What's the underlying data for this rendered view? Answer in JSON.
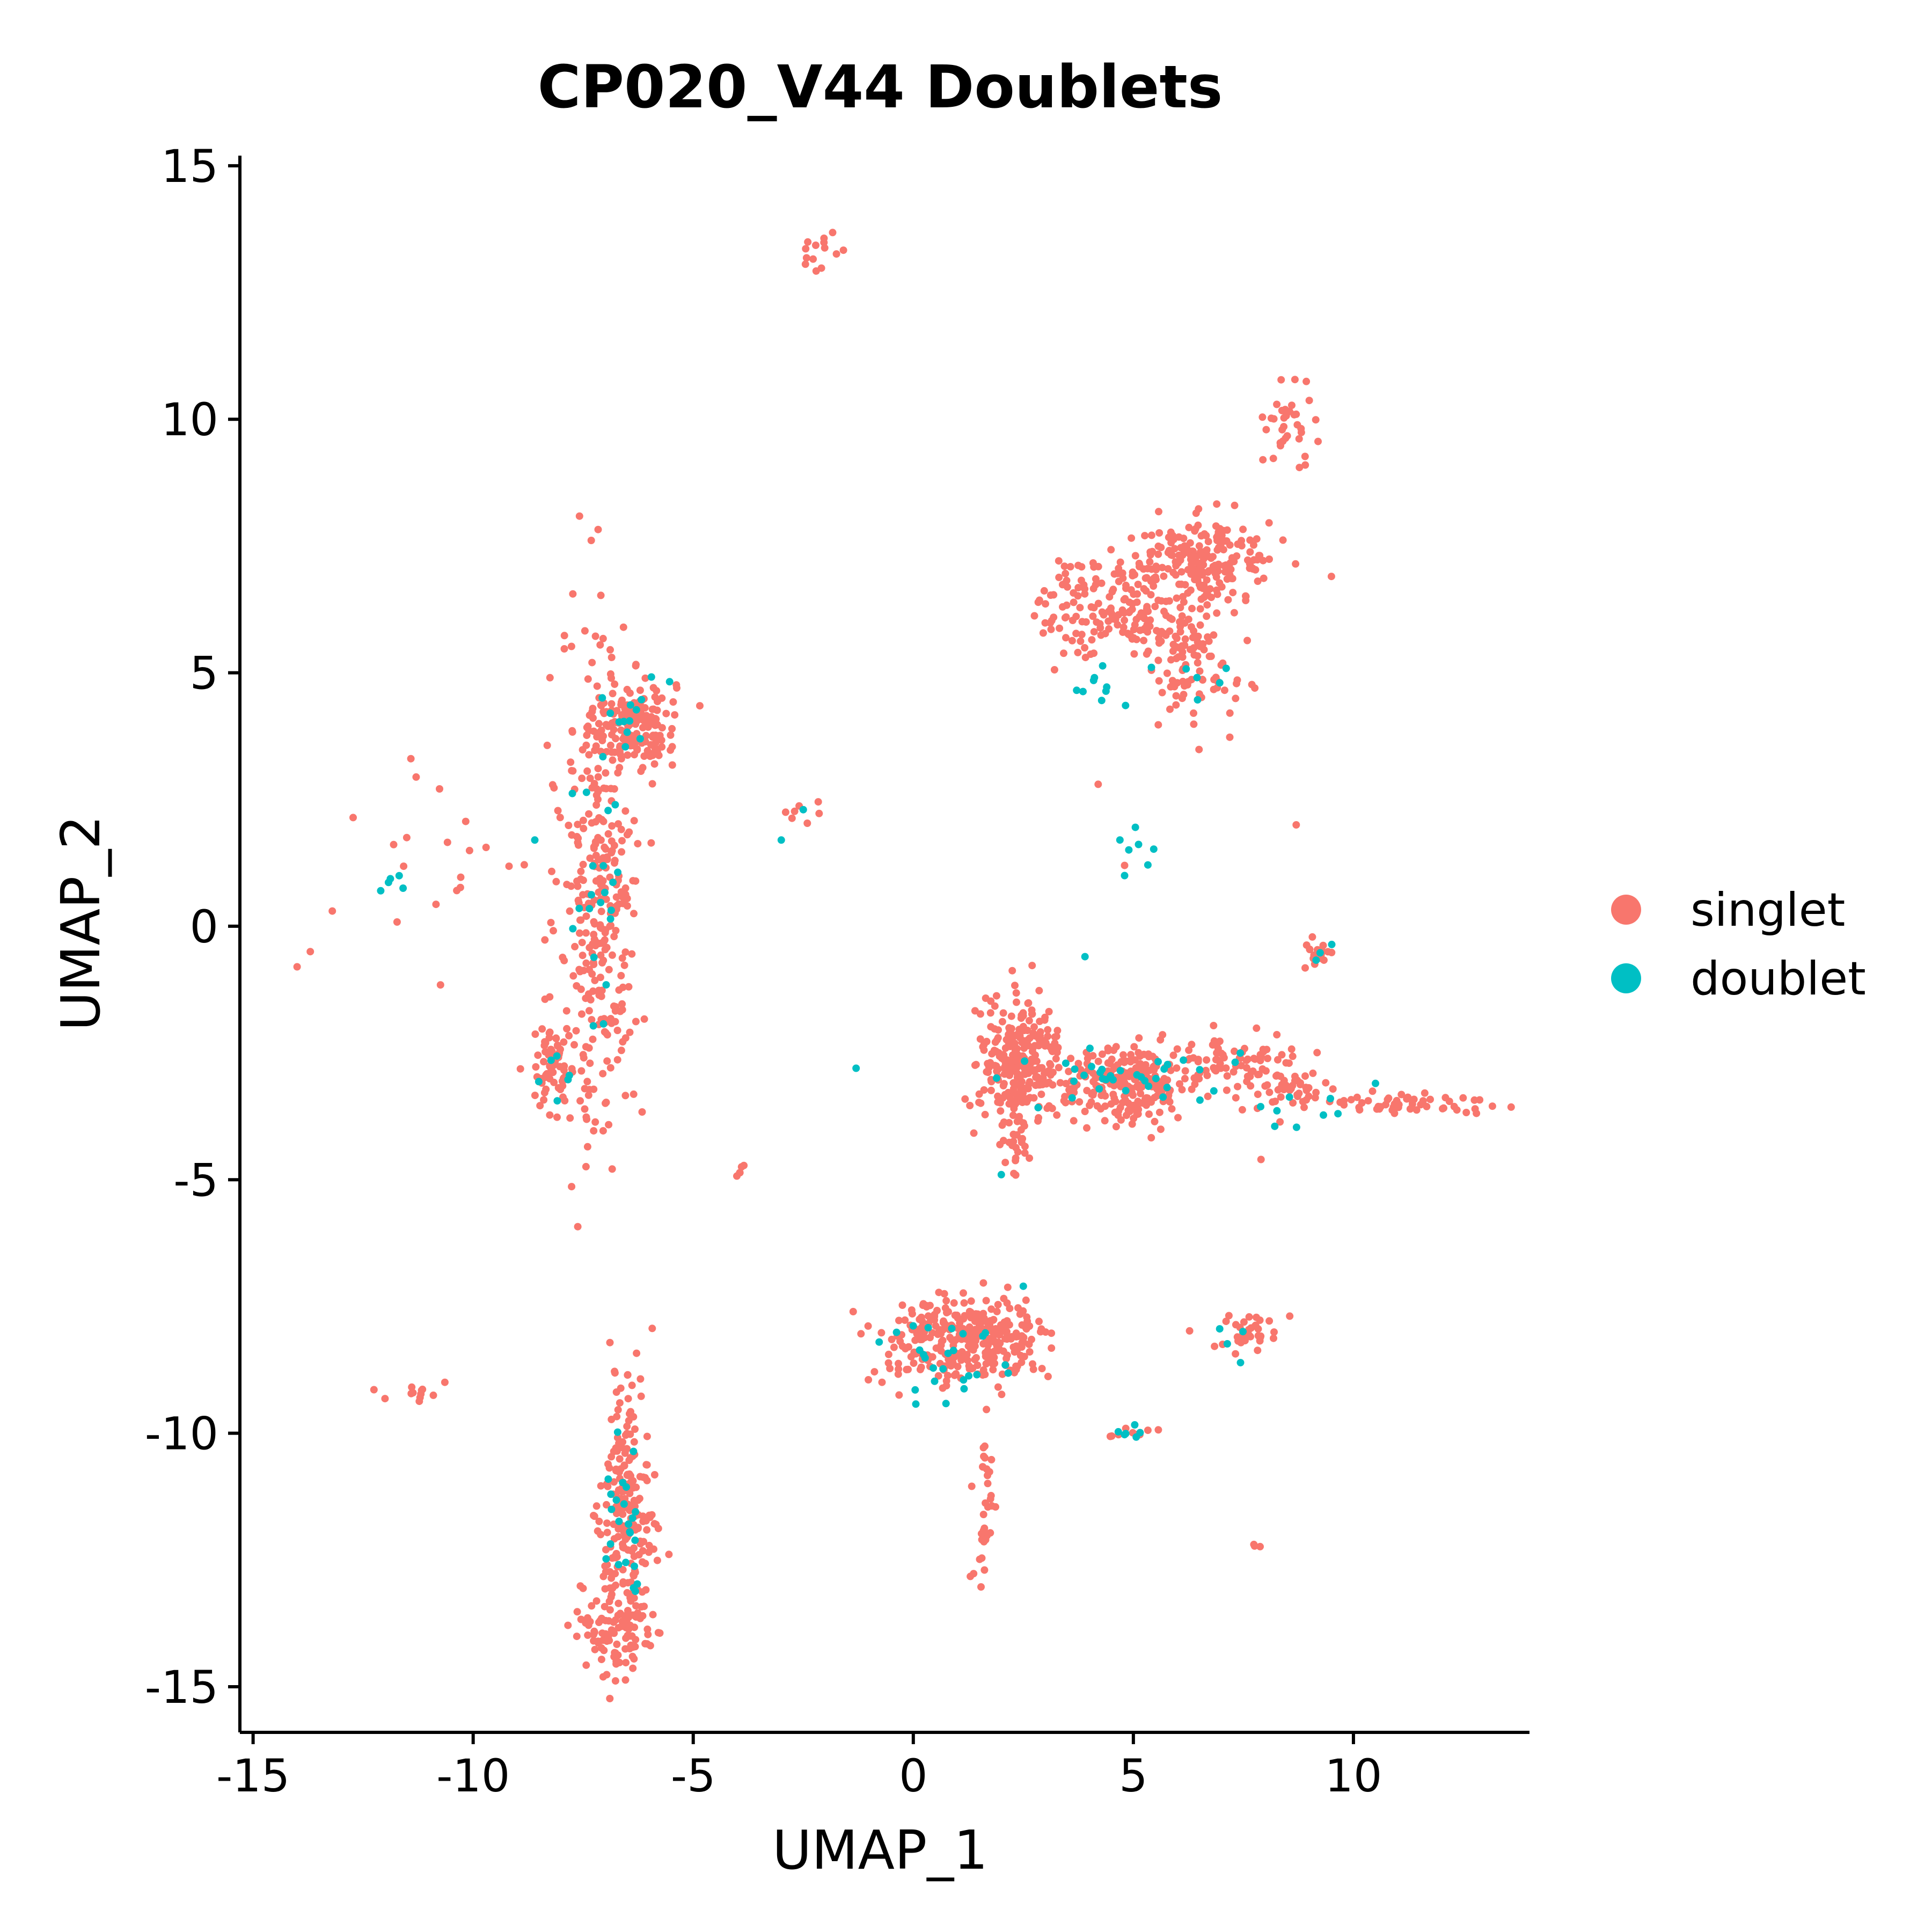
{
  "chart_data": {
    "type": "scatter",
    "title": "CP020_V44 Doublets",
    "xlabel": "UMAP_1",
    "ylabel": "UMAP_2",
    "xlim": [
      -15.3,
      14.0
    ],
    "ylim": [
      -15.9,
      15.2
    ],
    "x_ticks": [
      -15,
      -10,
      -5,
      0,
      5,
      10
    ],
    "y_ticks": [
      -15,
      -10,
      -5,
      0,
      5,
      10,
      15
    ],
    "grid": false,
    "legend_position": "right",
    "colors": {
      "singlet": "#F8766D",
      "doublet": "#00BFC4"
    },
    "legend": [
      "singlet",
      "doublet"
    ],
    "series": [
      {
        "name": "singlet",
        "color": "#F8766D",
        "clusters": [
          {
            "cx": -6.3,
            "cy": 4.0,
            "sx": 0.45,
            "sy": 0.45,
            "n": 160
          },
          {
            "cx": -7.1,
            "cy": 0.8,
            "sx": 0.45,
            "sy": 2.6,
            "n": 330
          },
          {
            "cx": -8.2,
            "cy": -2.8,
            "sx": 0.25,
            "sy": 0.45,
            "n": 70
          },
          {
            "cx": -10.5,
            "cy": 1.8,
            "sx": 1.2,
            "sy": 0.9,
            "n": 20
          },
          {
            "cx": -2.1,
            "cy": 13.3,
            "sx": 0.3,
            "sy": 0.2,
            "n": 14
          },
          {
            "cx": 4.6,
            "cy": 6.3,
            "sx": 0.9,
            "sy": 0.5,
            "n": 180
          },
          {
            "cx": 6.6,
            "cy": 7.2,
            "sx": 0.8,
            "sy": 0.4,
            "n": 200
          },
          {
            "cx": 6.3,
            "cy": 5.1,
            "sx": 0.5,
            "sy": 0.6,
            "n": 90
          },
          {
            "cx": 8.6,
            "cy": 10.0,
            "sx": 0.3,
            "sy": 0.35,
            "n": 35
          },
          {
            "cx": 2.4,
            "cy": -2.6,
            "sx": 0.45,
            "sy": 0.55,
            "n": 260
          },
          {
            "cx": 4.9,
            "cy": -3.1,
            "sx": 0.9,
            "sy": 0.35,
            "n": 260
          },
          {
            "cx": 2.3,
            "cy": -4.0,
            "sx": 0.2,
            "sy": 0.5,
            "n": 40
          },
          {
            "cx": 7.3,
            "cy": -2.6,
            "sx": 0.8,
            "sy": 0.25,
            "n": 60
          },
          {
            "cx": 8.5,
            "cy": -3.2,
            "sx": 0.5,
            "sy": 0.3,
            "n": 50
          },
          {
            "cx": 11.0,
            "cy": -3.5,
            "sx": 1.1,
            "sy": 0.12,
            "n": 55
          },
          {
            "cx": 9.2,
            "cy": -0.5,
            "sx": 0.15,
            "sy": 0.2,
            "n": 18
          },
          {
            "cx": 0.8,
            "cy": -8.2,
            "sx": 0.8,
            "sy": 0.45,
            "n": 240
          },
          {
            "cx": 2.2,
            "cy": -8.1,
            "sx": 0.4,
            "sy": 0.35,
            "n": 90
          },
          {
            "cx": 1.6,
            "cy": -11.8,
            "sx": 0.12,
            "sy": 0.8,
            "n": 35
          },
          {
            "cx": -6.5,
            "cy": -11.8,
            "sx": 0.3,
            "sy": 1.4,
            "n": 250
          },
          {
            "cx": -6.8,
            "cy": -13.8,
            "sx": 0.4,
            "sy": 0.4,
            "n": 70
          },
          {
            "cx": 7.6,
            "cy": -8.0,
            "sx": 0.4,
            "sy": 0.2,
            "n": 35
          },
          {
            "cx": 5.0,
            "cy": -10.0,
            "sx": 0.25,
            "sy": 0.07,
            "n": 10
          },
          {
            "cx": -11.3,
            "cy": -9.2,
            "sx": 0.3,
            "sy": 0.1,
            "n": 12
          },
          {
            "cx": -2.5,
            "cy": 2.2,
            "sx": 0.4,
            "sy": 0.2,
            "n": 7
          },
          {
            "cx": -3.9,
            "cy": -4.8,
            "sx": 0.05,
            "sy": 0.08,
            "n": 5
          },
          {
            "cx": 7.8,
            "cy": -12.2,
            "sx": 0.08,
            "sy": 0.05,
            "n": 3
          }
        ],
        "points": [
          {
            "x": -14.0,
            "y": -0.8
          },
          {
            "x": -13.7,
            "y": -0.5
          },
          {
            "x": -13.2,
            "y": 0.3
          },
          {
            "x": 8.7,
            "y": 2.0
          },
          {
            "x": 9.5,
            "y": 6.9
          },
          {
            "x": 7.9,
            "y": -4.6
          },
          {
            "x": 7.3,
            "y": 8.3
          },
          {
            "x": 4.2,
            "y": 2.8
          },
          {
            "x": 4.8,
            "y": 1.2
          }
        ]
      },
      {
        "name": "doublet",
        "color": "#00BFC4",
        "clusters": [
          {
            "cx": -6.3,
            "cy": 4.2,
            "sx": 0.4,
            "sy": 0.35,
            "n": 12
          },
          {
            "cx": -7.2,
            "cy": 1.2,
            "sx": 0.35,
            "sy": 1.4,
            "n": 22
          },
          {
            "cx": -8.1,
            "cy": -3.2,
            "sx": 0.2,
            "sy": 0.3,
            "n": 6
          },
          {
            "cx": 4.2,
            "cy": 4.8,
            "sx": 0.5,
            "sy": 0.4,
            "n": 10
          },
          {
            "cx": 4.7,
            "cy": 1.8,
            "sx": 0.3,
            "sy": 0.4,
            "n": 6
          },
          {
            "cx": 6.6,
            "cy": 4.8,
            "sx": 0.3,
            "sy": 0.3,
            "n": 5
          },
          {
            "cx": 4.8,
            "cy": -2.9,
            "sx": 1.4,
            "sy": 0.35,
            "n": 35
          },
          {
            "cx": 8.6,
            "cy": -3.6,
            "sx": 0.4,
            "sy": 0.2,
            "n": 8
          },
          {
            "cx": 0.7,
            "cy": -8.5,
            "sx": 0.7,
            "sy": 0.5,
            "n": 25
          },
          {
            "cx": -6.6,
            "cy": -12.2,
            "sx": 0.25,
            "sy": 1.3,
            "n": 25
          },
          {
            "cx": 5.0,
            "cy": -10.0,
            "sx": 0.2,
            "sy": 0.06,
            "n": 6
          },
          {
            "cx": 7.1,
            "cy": -8.1,
            "sx": 0.25,
            "sy": 0.3,
            "n": 4
          },
          {
            "cx": 9.3,
            "cy": -0.5,
            "sx": 0.12,
            "sy": 0.2,
            "n": 3
          },
          {
            "cx": -11.6,
            "cy": 1.0,
            "sx": 0.4,
            "sy": 0.2,
            "n": 4
          }
        ],
        "points": [
          {
            "x": -12.1,
            "y": 0.7
          },
          {
            "x": -1.3,
            "y": -2.8
          },
          {
            "x": 3.9,
            "y": -0.6
          },
          {
            "x": 2.0,
            "y": -4.9
          },
          {
            "x": 10.5,
            "y": -3.1
          },
          {
            "x": -2.5,
            "y": 2.3
          },
          {
            "x": -3.0,
            "y": 1.7
          },
          {
            "x": -8.6,
            "y": 1.7
          },
          {
            "x": 4.8,
            "y": 1.0
          },
          {
            "x": 2.5,
            "y": -7.1
          }
        ]
      }
    ]
  }
}
